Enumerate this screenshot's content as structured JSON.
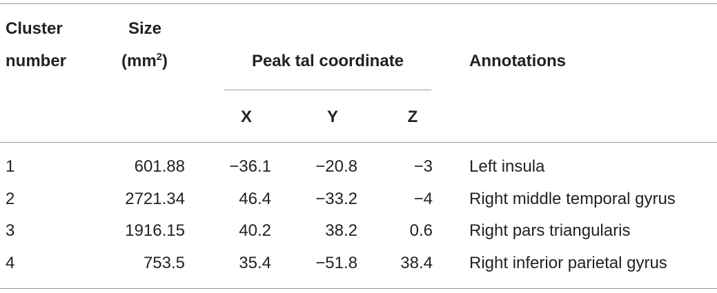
{
  "table": {
    "header": {
      "cluster": [
        "Cluster",
        "number"
      ],
      "size": {
        "line1": "Size",
        "line2_open": "(mm",
        "line2_sup": "2",
        "line2_close": ")"
      },
      "peak": "Peak tal coordinate",
      "coords": [
        "X",
        "Y",
        "Z"
      ],
      "annotations": "Annotations"
    },
    "rows": [
      [
        "1",
        "601.88",
        "−36.1",
        "−20.8",
        "−3",
        "Left insula"
      ],
      [
        "2",
        "2721.34",
        "46.4",
        "−33.2",
        "−4",
        "Right middle temporal gyrus"
      ],
      [
        "3",
        "1916.15",
        "40.2",
        "38.2",
        "0.6",
        "Right pars triangularis"
      ],
      [
        "4",
        "753.5",
        "35.4",
        "−51.8",
        "38.4",
        "Right inferior parietal gyrus"
      ]
    ]
  }
}
